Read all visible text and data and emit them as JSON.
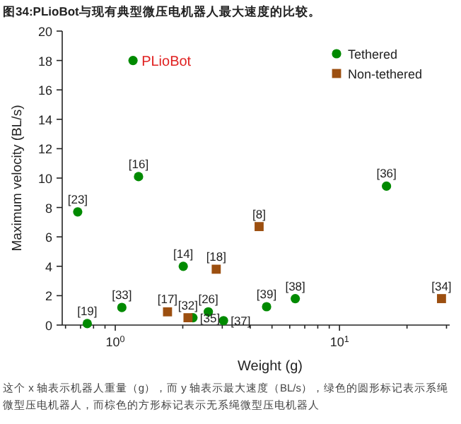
{
  "chart_data": {
    "type": "scatter",
    "title": "图34:PLioBot与现有典型微压电机器人最大速度的比较。",
    "xlabel": "Weight (g)",
    "ylabel": "Maximum velocity (BL/s)",
    "log": "x",
    "legend": "top right",
    "xlim": [
      0.58,
      31
    ],
    "xticks": [
      {
        "value": 0.6,
        "label": null
      },
      {
        "value": 0.7,
        "label": null
      },
      {
        "value": 0.8,
        "label": null
      },
      {
        "value": 0.9,
        "label": null
      },
      {
        "value": 1,
        "label": "10$^{0}$"
      },
      {
        "value": 2,
        "label": null
      },
      {
        "value": 3,
        "label": null
      },
      {
        "value": 4,
        "label": null
      },
      {
        "value": 5,
        "label": null
      },
      {
        "value": 6,
        "label": null
      },
      {
        "value": 7,
        "label": null
      },
      {
        "value": 8,
        "label": null
      },
      {
        "value": 9,
        "label": null
      },
      {
        "value": 10,
        "label": "10$^{1}$"
      },
      {
        "value": 20,
        "label": null
      },
      {
        "value": 30,
        "label": null
      }
    ],
    "ylim": [
      0,
      20
    ],
    "yticks": [
      0,
      2,
      4,
      6,
      8,
      10,
      12,
      14,
      16,
      18,
      20
    ],
    "series": [
      {
        "name": "Tethered",
        "color": "#008a00",
        "marker": "circle",
        "x": [
          1.2,
          0.68,
          1.27,
          0.75,
          1.07,
          2.01,
          2.22,
          2.6,
          3.04,
          4.73,
          6.35,
          16.2
        ],
        "values": [
          18,
          7.7,
          10.1,
          0.1,
          1.2,
          4.0,
          0.5,
          0.9,
          0.3,
          1.25,
          1.8,
          9.45
        ]
      },
      {
        "name": "Non-tethered",
        "color": "#9c4f10",
        "marker": "square",
        "x": [
          2.82,
          1.71,
          2.11,
          4.38,
          28.5
        ],
        "values": [
          3.8,
          0.9,
          0.5,
          6.7,
          1.8
        ]
      }
    ],
    "annotations": [
      {
        "text": "PLioBot",
        "x": 1.2,
        "y": 18
      },
      {
        "text": "[23]",
        "x": 0.68,
        "y": 7.7
      },
      {
        "text": "[16]",
        "x": 1.27,
        "y": 10.1
      },
      {
        "text": "[19]",
        "x": 0.75,
        "y": 0.1
      },
      {
        "text": "[33]",
        "x": 1.07,
        "y": 1.2
      },
      {
        "text": "[14]",
        "x": 2.01,
        "y": 4.0
      },
      {
        "text": "[18]",
        "x": 2.82,
        "y": 3.8
      },
      {
        "text": "[17]",
        "x": 1.71,
        "y": 0.9
      },
      {
        "text": "[32]",
        "x": 2.11,
        "y": 0.5
      },
      {
        "text": "[35]",
        "x": 2.22,
        "y": 0.5
      },
      {
        "text": "[26]",
        "x": 2.6,
        "y": 0.9
      },
      {
        "text": "[37]",
        "x": 3.04,
        "y": 0.3
      },
      {
        "text": "[8]",
        "x": 4.38,
        "y": 6.7
      },
      {
        "text": "[39]",
        "x": 4.73,
        "y": 1.25
      },
      {
        "text": "[38]",
        "x": 6.35,
        "y": 1.8
      },
      {
        "text": "[36]",
        "x": 16.2,
        "y": 9.45
      },
      {
        "text": "[34]",
        "x": 28.5,
        "y": 1.8
      },
      "这个 x 轴表示机器人重量（g），而 y 轴表示最大速度（BL/s），绿色的圆形标记表示系绳微型压电机器人，而棕色的方形标记表示无系绳微型压电机器人"
    ]
  }
}
